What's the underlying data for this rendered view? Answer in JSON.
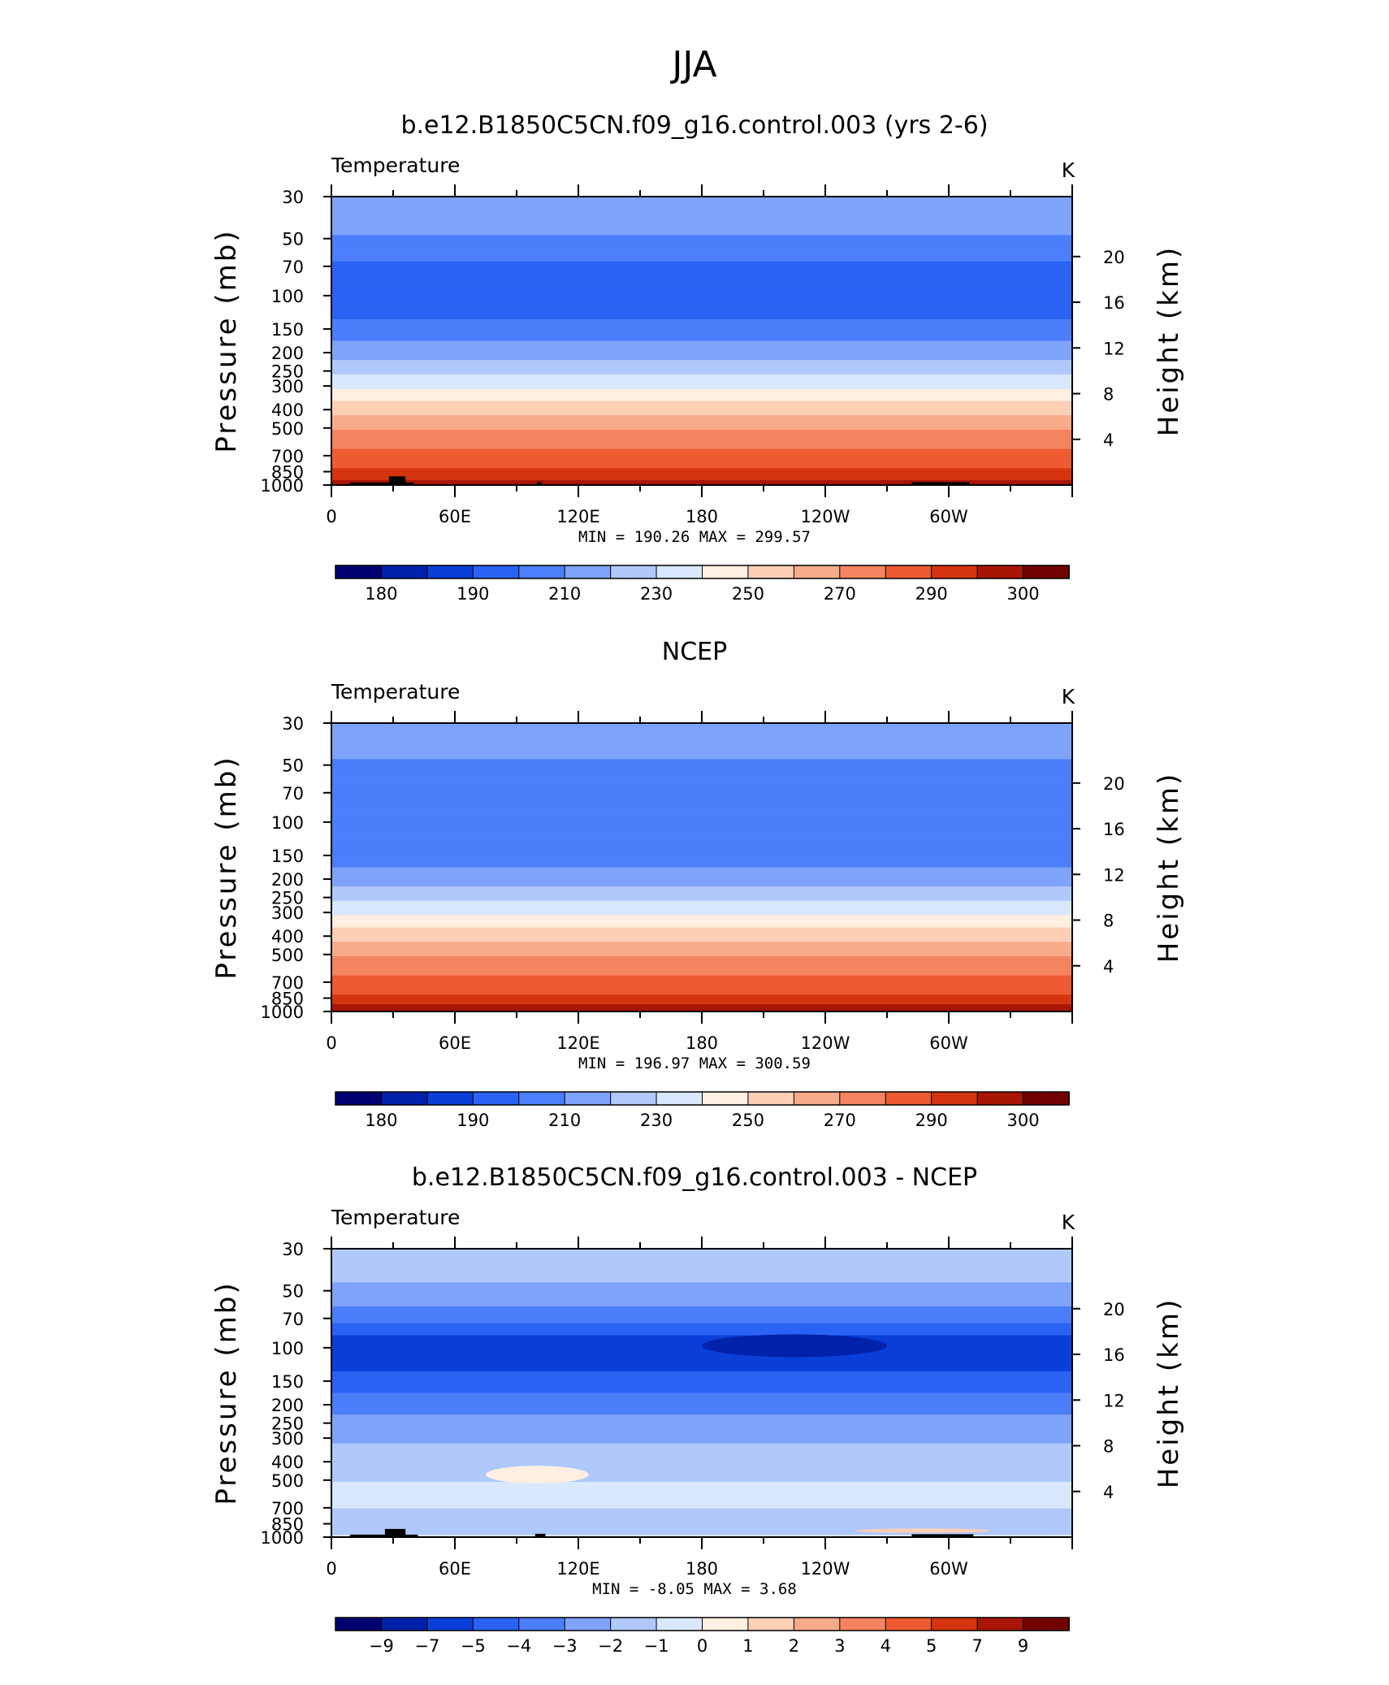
{
  "main_title": "JJA",
  "colors": {
    "palette": [
      "#000070",
      "#0021a9",
      "#0a3fd9",
      "#2a62f3",
      "#4b7ef8",
      "#7fa3fb",
      "#b0c8fb",
      "#d9e8fd",
      "#fff0e1",
      "#fdd0b6",
      "#f8ab89",
      "#f48460",
      "#ee5a32",
      "#d4350f",
      "#a81505",
      "#720000"
    ],
    "land": "#000000"
  },
  "chart_data": [
    {
      "type": "heatmap",
      "title": "b.e12.B1850C5CN.f09_g16.control.003 (yrs 2-6)",
      "variable_label": "Temperature",
      "units_label": "K",
      "ylabel": "Pressure (mb)",
      "y2label": "Height (km)",
      "x_ticks": [
        "0",
        "60E",
        "120E",
        "180",
        "120W",
        "60W"
      ],
      "y_ticks": [
        "30",
        "50",
        "70",
        "100",
        "150",
        "200",
        "250",
        "300",
        "400",
        "500",
        "700",
        "850",
        "1000"
      ],
      "y_tick_values": [
        30,
        50,
        70,
        100,
        150,
        200,
        250,
        300,
        400,
        500,
        700,
        850,
        1000
      ],
      "y2_ticks": [
        "20",
        "16",
        "12",
        "8",
        "4"
      ],
      "y2_tick_values": [
        20,
        16,
        12,
        8,
        4
      ],
      "xlim": [
        0,
        360
      ],
      "ylim": [
        1000,
        30
      ],
      "y_scale": "log",
      "min_label": "MIN =  190.26   MAX =  299.57",
      "colorbar_labels": [
        "180",
        "190",
        "210",
        "230",
        "250",
        "270",
        "290",
        "300"
      ],
      "levels": [
        180,
        185,
        190,
        200,
        210,
        220,
        230,
        240,
        250,
        260,
        270,
        280,
        290,
        295,
        300
      ],
      "profile": [
        {
          "p": 30,
          "v": 214
        },
        {
          "p": 45,
          "v": 213
        },
        {
          "p": 55,
          "v": 205
        },
        {
          "p": 75,
          "v": 196
        },
        {
          "p": 100,
          "v": 197
        },
        {
          "p": 130,
          "v": 199
        },
        {
          "p": 160,
          "v": 207
        },
        {
          "p": 200,
          "v": 215
        },
        {
          "p": 240,
          "v": 225
        },
        {
          "p": 290,
          "v": 236
        },
        {
          "p": 330,
          "v": 245
        },
        {
          "p": 400,
          "v": 255
        },
        {
          "p": 470,
          "v": 265
        },
        {
          "p": 560,
          "v": 274
        },
        {
          "p": 680,
          "v": 283
        },
        {
          "p": 850,
          "v": 291
        },
        {
          "p": 1000,
          "v": 297
        }
      ],
      "land_boxes": [
        {
          "x0": 9,
          "x1": 40,
          "p_top": 970
        },
        {
          "x0": 28,
          "x1": 36,
          "p_top": 900
        },
        {
          "x0": 100,
          "x1": 102,
          "p_top": 960
        },
        {
          "x0": 282,
          "x1": 310,
          "p_top": 965
        }
      ]
    },
    {
      "type": "heatmap",
      "title": "NCEP",
      "variable_label": "Temperature",
      "units_label": "K",
      "ylabel": "Pressure (mb)",
      "y2label": "Height (km)",
      "x_ticks": [
        "0",
        "60E",
        "120E",
        "180",
        "120W",
        "60W"
      ],
      "y_ticks": [
        "30",
        "50",
        "70",
        "100",
        "150",
        "200",
        "250",
        "300",
        "400",
        "500",
        "700",
        "850",
        "1000"
      ],
      "y_tick_values": [
        30,
        50,
        70,
        100,
        150,
        200,
        250,
        300,
        400,
        500,
        700,
        850,
        1000
      ],
      "y2_ticks": [
        "20",
        "16",
        "12",
        "8",
        "4"
      ],
      "y2_tick_values": [
        20,
        16,
        12,
        8,
        4
      ],
      "xlim": [
        0,
        360
      ],
      "ylim": [
        1000,
        30
      ],
      "y_scale": "log",
      "min_label": "MIN =  196.97   MAX =  300.59",
      "colorbar_labels": [
        "180",
        "190",
        "210",
        "230",
        "250",
        "270",
        "290",
        "300"
      ],
      "levels": [
        180,
        185,
        190,
        200,
        210,
        220,
        230,
        240,
        250,
        260,
        270,
        280,
        290,
        295,
        300
      ],
      "profile": [
        {
          "p": 30,
          "v": 214
        },
        {
          "p": 45,
          "v": 211
        },
        {
          "p": 55,
          "v": 206
        },
        {
          "p": 80,
          "v": 203
        },
        {
          "p": 100,
          "v": 201
        },
        {
          "p": 130,
          "v": 203
        },
        {
          "p": 160,
          "v": 207
        },
        {
          "p": 200,
          "v": 215
        },
        {
          "p": 240,
          "v": 225
        },
        {
          "p": 290,
          "v": 236
        },
        {
          "p": 330,
          "v": 245
        },
        {
          "p": 400,
          "v": 255
        },
        {
          "p": 470,
          "v": 265
        },
        {
          "p": 560,
          "v": 274
        },
        {
          "p": 680,
          "v": 283
        },
        {
          "p": 850,
          "v": 292
        },
        {
          "p": 1000,
          "v": 298
        }
      ],
      "land_boxes": []
    },
    {
      "type": "heatmap",
      "title": "b.e12.B1850C5CN.f09_g16.control.003 - NCEP",
      "variable_label": "Temperature",
      "units_label": "K",
      "ylabel": "Pressure (mb)",
      "y2label": "Height (km)",
      "x_ticks": [
        "0",
        "60E",
        "120E",
        "180",
        "120W",
        "60W"
      ],
      "y_ticks": [
        "30",
        "50",
        "70",
        "100",
        "150",
        "200",
        "250",
        "300",
        "400",
        "500",
        "700",
        "850",
        "1000"
      ],
      "y_tick_values": [
        30,
        50,
        70,
        100,
        150,
        200,
        250,
        300,
        400,
        500,
        700,
        850,
        1000
      ],
      "y2_ticks": [
        "20",
        "16",
        "12",
        "8",
        "4"
      ],
      "y2_tick_values": [
        20,
        16,
        12,
        8,
        4
      ],
      "xlim": [
        0,
        360
      ],
      "ylim": [
        1000,
        30
      ],
      "y_scale": "log",
      "min_label": "MIN =   -8.05   MAX =    3.68",
      "colorbar_labels": [
        "−9",
        "−7",
        "−5",
        "−4",
        "−3",
        "−2",
        "−1",
        "0",
        "1",
        "2",
        "3",
        "4",
        "5",
        "7",
        "9"
      ],
      "levels": [
        -9,
        -7,
        -5,
        -4,
        -3,
        -2,
        -1,
        0,
        1,
        2,
        3,
        4,
        5,
        7,
        9
      ],
      "profile": [
        {
          "p": 30,
          "v": -1.5
        },
        {
          "p": 45,
          "v": -2
        },
        {
          "p": 60,
          "v": -3
        },
        {
          "p": 75,
          "v": -4
        },
        {
          "p": 90,
          "v": -5.5
        },
        {
          "p": 100,
          "v": -6
        },
        {
          "p": 120,
          "v": -5.5
        },
        {
          "p": 150,
          "v": -4.5
        },
        {
          "p": 200,
          "v": -3.5
        },
        {
          "p": 260,
          "v": -2.5
        },
        {
          "p": 350,
          "v": -1.8
        },
        {
          "p": 450,
          "v": -1.2
        },
        {
          "p": 600,
          "v": -0.7
        },
        {
          "p": 750,
          "v": -1.1
        },
        {
          "p": 900,
          "v": -1.3
        },
        {
          "p": 1000,
          "v": -0.9
        }
      ],
      "features": [
        {
          "x0": 180,
          "x1": 270,
          "p_top": 85,
          "p_bot": 112,
          "level": -9
        },
        {
          "x0": 75,
          "x1": 125,
          "p_top": 420,
          "p_bot": 520,
          "level": 0
        },
        {
          "x0": 255,
          "x1": 320,
          "p_top": 900,
          "p_bot": 950,
          "level": 1
        }
      ],
      "land_boxes": [
        {
          "x0": 9,
          "x1": 42,
          "p_top": 970
        },
        {
          "x0": 26,
          "x1": 36,
          "p_top": 905
        },
        {
          "x0": 99,
          "x1": 104,
          "p_top": 960
        },
        {
          "x0": 282,
          "x1": 312,
          "p_top": 965
        }
      ]
    }
  ]
}
